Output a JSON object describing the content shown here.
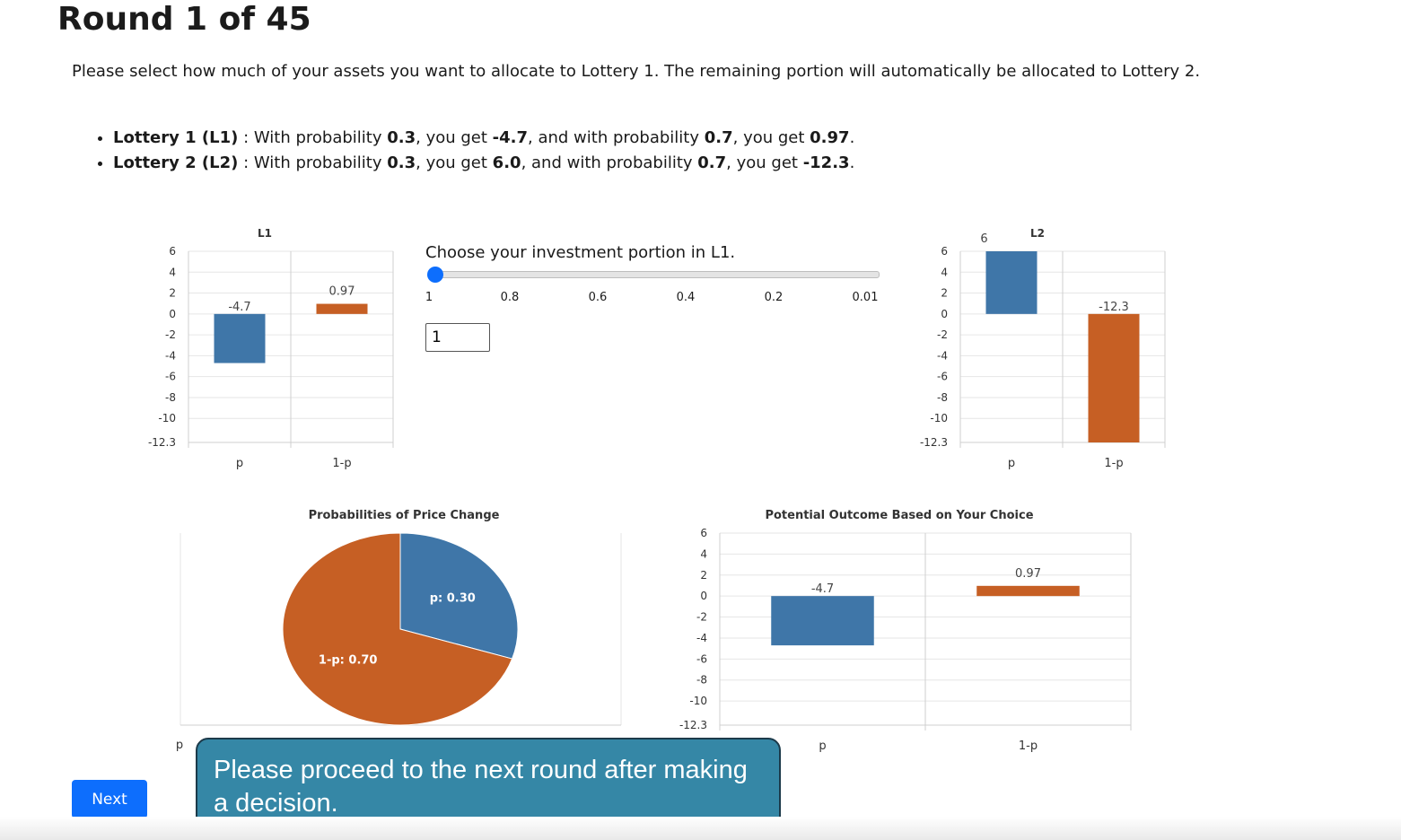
{
  "page": {
    "title": "Round 1 of 45",
    "instruction": "Please select how much of your assets you want to allocate to Lottery 1. The remaining portion will automatically be allocated to Lottery 2."
  },
  "lotteries": [
    {
      "name": "Lottery 1 (L1)",
      "p": "0.3",
      "outcome_p": "-4.7",
      "q": "0.7",
      "outcome_q": "0.97"
    },
    {
      "name": "Lottery 2 (L2)",
      "p": "0.3",
      "outcome_p": "6.0",
      "q": "0.7",
      "outcome_q": "-12.3"
    }
  ],
  "text": {
    "sep": " : ",
    "with_prob": "With probability ",
    "you_get": ", you get ",
    "and_with_prob": ", and with probability ",
    "period": "."
  },
  "slider": {
    "label": "Choose your investment portion in L1.",
    "ticks": [
      "1",
      "0.8",
      "0.6",
      "0.4",
      "0.2",
      "0.01"
    ],
    "value": 1,
    "input_value": "1"
  },
  "next_button": {
    "label": "Next"
  },
  "tooltip": {
    "text": "Please proceed to the next round after making a decision."
  },
  "colors": {
    "blue": "#3f76a8",
    "orange": "#c65f24",
    "grid": "#e6e6e6",
    "axis": "#cfcfcf",
    "button": "#0d6efd",
    "tooltip": "#3587a6"
  },
  "chart_data": [
    {
      "id": "l1",
      "type": "bar",
      "title": "L1",
      "categories": [
        "p",
        "1-p"
      ],
      "values": [
        -4.7,
        0.97
      ],
      "value_labels": [
        "-4.7",
        "0.97"
      ],
      "colors": [
        "#3f76a8",
        "#c65f24"
      ],
      "yticks": [
        6,
        4,
        2,
        0,
        -2,
        -4,
        -6,
        -8,
        -10,
        -12.3
      ],
      "ylim": [
        -12.3,
        6
      ]
    },
    {
      "id": "l2",
      "type": "bar",
      "title": "L2",
      "categories": [
        "p",
        "1-p"
      ],
      "values": [
        6,
        -12.3
      ],
      "value_labels": [
        "6",
        "-12.3"
      ],
      "colors": [
        "#3f76a8",
        "#c65f24"
      ],
      "yticks": [
        6,
        4,
        2,
        0,
        -2,
        -4,
        -6,
        -8,
        -10,
        -12.3
      ],
      "ylim": [
        -12.3,
        6
      ]
    },
    {
      "id": "prob",
      "type": "pie",
      "title": "Probabilities of Price Change",
      "slices": [
        {
          "label": "p",
          "value": 0.3,
          "text": "p: 0.30",
          "color": "#3f76a8"
        },
        {
          "label": "1-p",
          "value": 0.7,
          "text": "1-p: 0.70",
          "color": "#c65f24"
        }
      ],
      "axis_label": "p"
    },
    {
      "id": "outcome",
      "type": "bar",
      "title": "Potential Outcome Based on Your Choice",
      "categories": [
        "p",
        "1-p"
      ],
      "values": [
        -4.7,
        0.97
      ],
      "value_labels": [
        "-4.7",
        "0.97"
      ],
      "colors": [
        "#3f76a8",
        "#c65f24"
      ],
      "yticks": [
        6,
        4,
        2,
        0,
        -2,
        -4,
        -6,
        -8,
        -10,
        -12.3
      ],
      "ylim": [
        -12.3,
        6
      ]
    }
  ]
}
